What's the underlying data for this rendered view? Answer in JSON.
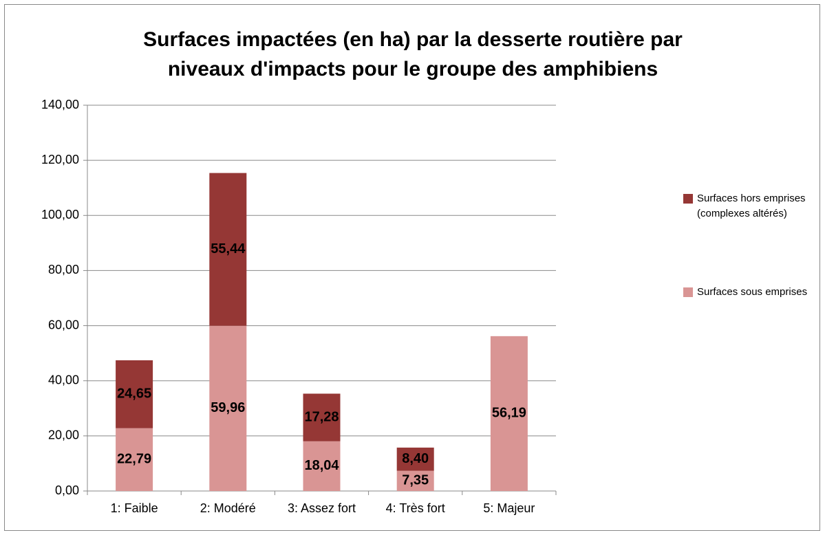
{
  "chart_data": {
    "type": "stacked_bar",
    "title": "Surfaces impactées (en ha) par la desserte routière par niveaux d'impacts pour le groupe des amphibiens",
    "categories": [
      "1: Faible",
      "2: Modéré",
      "3: Assez fort",
      "4: Très fort",
      "5: Majeur"
    ],
    "series": [
      {
        "name": "Surfaces sous emprises",
        "color": "#d99594",
        "values": [
          22.79,
          59.96,
          18.04,
          7.35,
          56.19
        ],
        "value_labels": [
          "22,79",
          "59,96",
          "18,04",
          "7,35",
          "56,19"
        ]
      },
      {
        "name": "Surfaces hors emprises (complexes altérés)",
        "color": "#953735",
        "values": [
          24.65,
          55.44,
          17.28,
          8.4,
          null
        ],
        "value_labels": [
          "24,65",
          "55,44",
          "17,28",
          "8,40",
          null
        ]
      }
    ],
    "ylim": [
      0,
      140
    ],
    "yticks": [
      {
        "value": 0,
        "label": "0,00"
      },
      {
        "value": 20,
        "label": "20,00"
      },
      {
        "value": 40,
        "label": "40,00"
      },
      {
        "value": 60,
        "label": "60,00"
      },
      {
        "value": 80,
        "label": "80,00"
      },
      {
        "value": 100,
        "label": "100,00"
      },
      {
        "value": 120,
        "label": "120,00"
      },
      {
        "value": 140,
        "label": "140,00"
      }
    ],
    "grid": true,
    "legend": "right"
  }
}
